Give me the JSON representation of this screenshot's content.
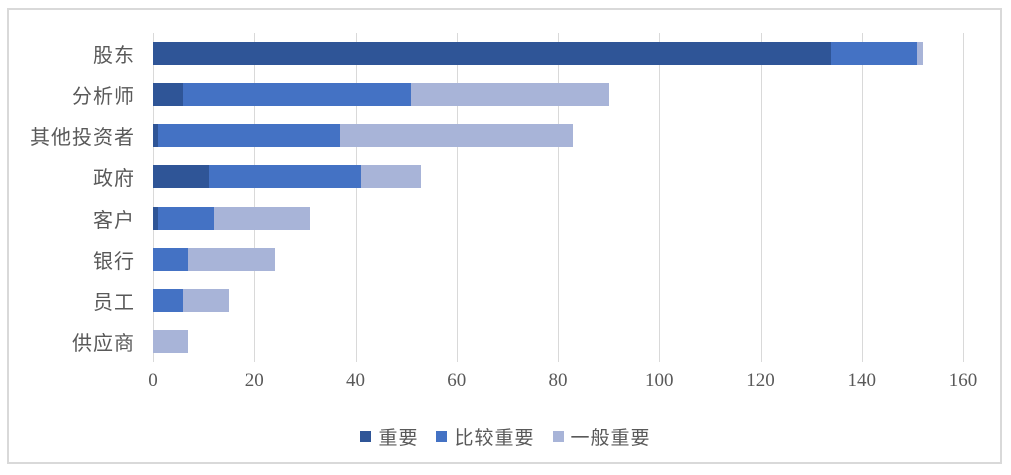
{
  "chart_data": {
    "type": "bar",
    "orientation": "horizontal",
    "stacked": true,
    "title": "",
    "xlabel": "",
    "ylabel": "",
    "categories": [
      "股东",
      "分析师",
      "其他投资者",
      "政府",
      "客户",
      "银行",
      "员工",
      "供应商"
    ],
    "series": [
      {
        "name": "重要",
        "color": "#2F5597",
        "values": [
          134,
          6,
          1,
          11,
          1,
          0,
          0,
          0
        ]
      },
      {
        "name": "比较重要",
        "color": "#4472C4",
        "values": [
          17,
          45,
          36,
          30,
          11,
          7,
          6,
          0
        ]
      },
      {
        "name": "一般重要",
        "color": "#A8B4D8",
        "values": [
          1,
          39,
          46,
          12,
          19,
          17,
          9,
          7
        ]
      }
    ],
    "totals": [
      152,
      90,
      83,
      53,
      31,
      24,
      15,
      7
    ],
    "xlim": [
      0,
      160
    ],
    "xticks": [
      0,
      20,
      40,
      60,
      80,
      100,
      120,
      140,
      160
    ],
    "grid": true,
    "legend_position": "bottom"
  },
  "style": {
    "gridline_color": "#D9D9D9",
    "frame_border_color": "#D9D9D9",
    "text_color": "#595959",
    "background_color": "#FFFFFF"
  }
}
